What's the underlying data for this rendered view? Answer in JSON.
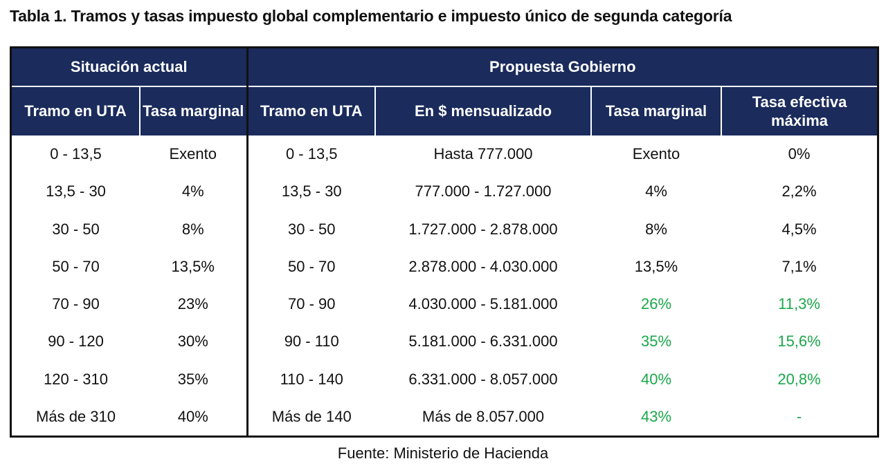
{
  "title": "Tabla 1. Tramos y tasas impuesto global complementario e impuesto único de segunda categoría",
  "groups": {
    "current": "Situación actual",
    "proposal": "Propuesta Gobierno"
  },
  "columns": [
    "Tramo en UTA",
    "Tasa marginal",
    "Tramo en UTA",
    "En $ mensualizado",
    "Tasa marginal",
    "Tasa efectiva máxima"
  ],
  "rows": [
    [
      "0 - 13,5",
      "Exento",
      "0 - 13,5",
      "Hasta 777.000",
      "Exento",
      "0%"
    ],
    [
      "13,5 - 30",
      "4%",
      "13,5 - 30",
      "777.000 - 1.727.000",
      "4%",
      "2,2%"
    ],
    [
      "30 - 50",
      "8%",
      "30 - 50",
      "1.727.000 - 2.878.000",
      "8%",
      "4,5%"
    ],
    [
      "50 - 70",
      "13,5%",
      "50 - 70",
      "2.878.000 - 4.030.000",
      "13,5%",
      "7,1%"
    ],
    [
      "70 - 90",
      "23%",
      "70 - 90",
      "4.030.000 - 5.181.000",
      "26%",
      "11,3%"
    ],
    [
      "90 - 120",
      "30%",
      "90 - 110",
      "5.181.000 - 6.331.000",
      "35%",
      "15,6%"
    ],
    [
      "120 - 310",
      "35%",
      "110 - 140",
      "6.331.000 - 8.057.000",
      "40%",
      "20,8%"
    ],
    [
      "Más de 310",
      "40%",
      "Más de 140",
      "Más de 8.057.000",
      "43%",
      "-"
    ]
  ],
  "source": "Fuente: Ministerio de Hacienda",
  "colors": {
    "header_bg": "#1a2b5c",
    "highlight": "#1aa84a"
  }
}
